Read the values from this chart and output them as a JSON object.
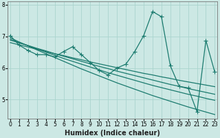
{
  "xlabel": "Humidex (Indice chaleur)",
  "ylabel": "",
  "bg_color": "#cce8e4",
  "grid_color": "#aad4ce",
  "line_color": "#1a7a6e",
  "x_ticks": [
    0,
    1,
    2,
    3,
    4,
    5,
    6,
    7,
    8,
    9,
    10,
    11,
    12,
    13,
    14,
    15,
    16,
    17,
    18,
    19,
    20,
    21,
    22,
    23
  ],
  "y_ticks": [
    5,
    6,
    7,
    8
  ],
  "ylim": [
    4.4,
    8.1
  ],
  "xlim": [
    -0.3,
    23.3
  ],
  "main_data": [
    7.02,
    6.72,
    6.55,
    6.42,
    6.42,
    6.35,
    6.52,
    6.67,
    6.42,
    6.17,
    5.92,
    5.78,
    6.0,
    6.12,
    6.52,
    7.02,
    7.78,
    7.62,
    6.07,
    5.42,
    5.37,
    4.62,
    6.87,
    5.87
  ],
  "trend_lines": [
    [
      6.95,
      6.82,
      6.7,
      6.57,
      6.45,
      6.33,
      6.21,
      6.09,
      5.97,
      5.86,
      5.75,
      5.64,
      5.53,
      5.43,
      5.33,
      5.23,
      5.13,
      5.04,
      4.95,
      4.86,
      4.77,
      4.69,
      4.61,
      4.53
    ],
    [
      6.9,
      6.8,
      6.7,
      6.6,
      6.5,
      6.4,
      6.3,
      6.21,
      6.12,
      6.03,
      5.94,
      5.85,
      5.77,
      5.69,
      5.61,
      5.53,
      5.45,
      5.38,
      5.31,
      5.24,
      5.17,
      5.11,
      5.04,
      4.98
    ],
    [
      6.88,
      6.79,
      6.71,
      6.62,
      6.54,
      6.45,
      6.37,
      6.29,
      6.21,
      6.13,
      6.05,
      5.98,
      5.9,
      5.83,
      5.76,
      5.69,
      5.62,
      5.55,
      5.48,
      5.42,
      5.35,
      5.29,
      5.23,
      5.17
    ],
    [
      6.8,
      6.73,
      6.66,
      6.59,
      6.52,
      6.45,
      6.39,
      6.32,
      6.26,
      6.19,
      6.13,
      6.07,
      6.01,
      5.95,
      5.89,
      5.83,
      5.78,
      5.72,
      5.67,
      5.61,
      5.56,
      5.51,
      5.46,
      5.41
    ]
  ],
  "marker_style": "+",
  "marker_size": 4,
  "line_width": 0.9,
  "axis_fontsize": 6,
  "tick_fontsize": 5.5,
  "xlabel_fontsize": 7
}
